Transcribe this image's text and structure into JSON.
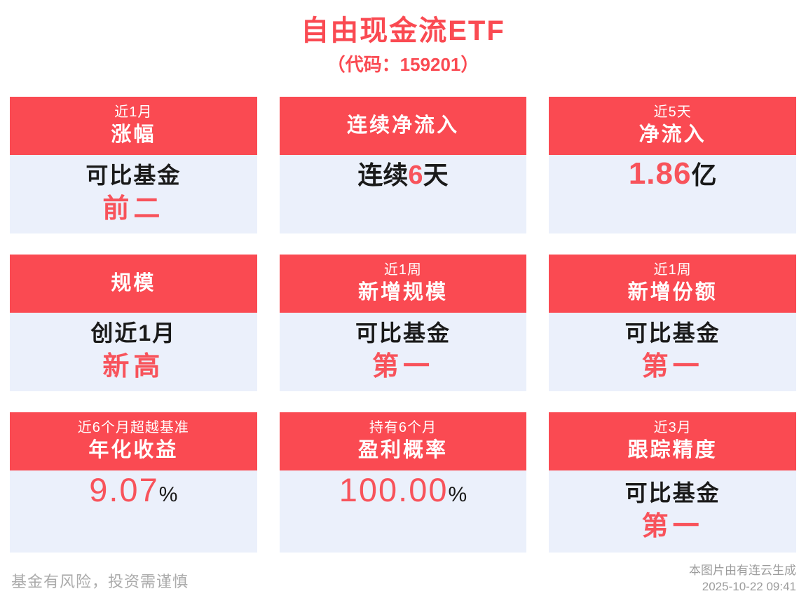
{
  "title": "自由现金流ETF",
  "subtitle": "（代码：159201）",
  "cards": [
    {
      "period": "近1月",
      "metric": "涨幅",
      "line1": "可比基金",
      "highlight": "前二"
    },
    {
      "period": "",
      "metric": "连续净流入",
      "pre": "连续",
      "value": "6",
      "post": "天"
    },
    {
      "period": "近5天",
      "metric": "净流入",
      "value": "1.86",
      "unit": "亿"
    },
    {
      "period": "",
      "metric": "规模",
      "line1": "创近1月",
      "highlight": "新高"
    },
    {
      "period": "近1周",
      "metric": "新增规模",
      "line1": "可比基金",
      "highlight": "第一"
    },
    {
      "period": "近1周",
      "metric": "新增份额",
      "line1": "可比基金",
      "highlight": "第一"
    },
    {
      "period": "近6个月超越基准",
      "metric": "年化收益",
      "value": "9.07",
      "unit": "%"
    },
    {
      "period": "持有6个月",
      "metric": "盈利概率",
      "value": "100.00",
      "unit": "%"
    },
    {
      "period": "近3月",
      "metric": "跟踪精度",
      "line1": "可比基金",
      "highlight": "第一"
    }
  ],
  "footer": {
    "disclaimer": "基金有风险，投资需谨慎",
    "source": "本图片由有连云生成",
    "timestamp": "2025-10-22 09:41"
  },
  "colors": {
    "header_red": "#FA4A52",
    "accent_red": "#F8535B",
    "body_bg": "#EBF0FB",
    "text_dark": "#1A1A1A",
    "footer_gray": "#ABABAB",
    "stamp_gray": "#9C9C9C"
  }
}
